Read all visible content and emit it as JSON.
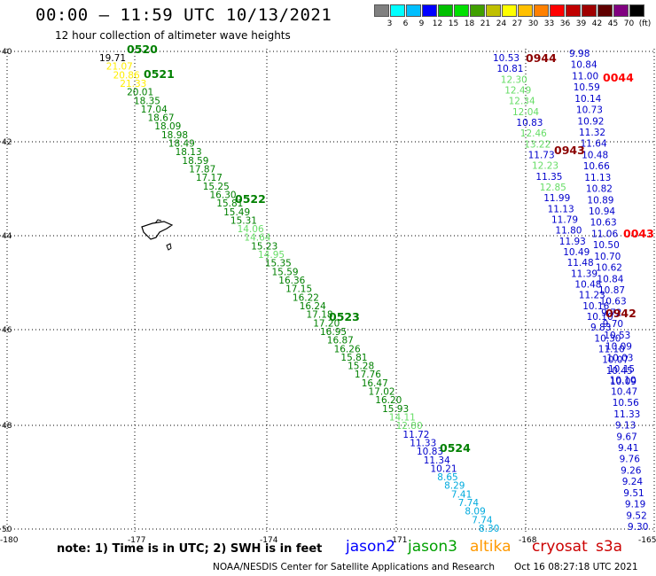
{
  "header": {
    "title": "00:00 – 11:59 UTC 10/13/2021",
    "subtitle": "12 hour collection of altimeter wave heights"
  },
  "scale": {
    "colors": [
      "#808080",
      "#00ffff",
      "#00bfff",
      "#0000ff",
      "#00c000",
      "#00e000",
      "#40a000",
      "#c0c000",
      "#ffff00",
      "#ffc000",
      "#ff8000",
      "#ff0000",
      "#c00000",
      "#a00000",
      "#600000",
      "#800080",
      "#000000"
    ],
    "labels": [
      "3",
      "6",
      "9",
      "12",
      "15",
      "18",
      "21",
      "24",
      "27",
      "30",
      "33",
      "36",
      "39",
      "42",
      "45",
      "70",
      "(ft)"
    ]
  },
  "footer": {
    "note": "note:  1) Time is in UTC;  2) SWH is in feet",
    "satellites": [
      {
        "name": "jason2",
        "color": "#0000ff"
      },
      {
        "name": "jason3",
        "color": "#00a000"
      },
      {
        "name": "altika",
        "color": "#ff9900"
      },
      {
        "name": "cryosat",
        "color": "#cc0000"
      },
      {
        "name": "s3a",
        "color": "#cc0000"
      }
    ],
    "credit": "NOAA/NESDIS Center for Satellite Applications and Research",
    "generated": "Oct 16 08:27:18 UTC 2021"
  },
  "map": {
    "lat_labels": [
      "40",
      "42",
      "44",
      "46",
      "48",
      "50"
    ],
    "lon_labels": [
      "-180",
      "-177",
      "-174",
      "-171",
      "-168",
      "-165"
    ],
    "time_labels": [
      {
        "text": "0520",
        "color": "#008000"
      },
      {
        "text": "0521",
        "color": "#008000"
      },
      {
        "text": "0522",
        "color": "#008000"
      },
      {
        "text": "0523",
        "color": "#008000"
      },
      {
        "text": "0524",
        "color": "#008000"
      },
      {
        "text": "0944",
        "color": "#8b0000"
      },
      {
        "text": "0943",
        "color": "#8b0000"
      },
      {
        "text": "0942",
        "color": "#8b0000"
      },
      {
        "text": "0044",
        "color": "#ff0000"
      },
      {
        "text": "0043",
        "color": "#ff0000"
      }
    ],
    "track1": [
      [
        "19.71",
        "#000000"
      ],
      [
        "21.07",
        "#ffee00"
      ],
      [
        "20.86",
        "#ffee00"
      ],
      [
        "21.33",
        "#ffee00"
      ],
      [
        "20.01",
        "#008000"
      ],
      [
        "18.35",
        "#008000"
      ],
      [
        "17.04",
        "#008000"
      ],
      [
        "18.67",
        "#008000"
      ],
      [
        "18.09",
        "#008000"
      ],
      [
        "18.98",
        "#008000"
      ],
      [
        "18.49",
        "#008000"
      ],
      [
        "18.13",
        "#008000"
      ],
      [
        "18.59",
        "#008000"
      ],
      [
        "17.87",
        "#008000"
      ],
      [
        "17.17",
        "#008000"
      ],
      [
        "15.25",
        "#008000"
      ],
      [
        "16.30",
        "#008000"
      ],
      [
        "15.81",
        "#008000"
      ],
      [
        "15.49",
        "#008000"
      ],
      [
        "15.31",
        "#008000"
      ],
      [
        "14.06",
        "#66dd66"
      ],
      [
        "14.64",
        "#66dd66"
      ],
      [
        "15.23",
        "#008000"
      ],
      [
        "14.95",
        "#66dd66"
      ],
      [
        "15.35",
        "#008000"
      ],
      [
        "15.59",
        "#008000"
      ],
      [
        "16.36",
        "#008000"
      ],
      [
        "17.15",
        "#008000"
      ],
      [
        "16.22",
        "#008000"
      ],
      [
        "16.24",
        "#008000"
      ],
      [
        "17.18",
        "#008000"
      ],
      [
        "17.20",
        "#008000"
      ],
      [
        "16.95",
        "#008000"
      ],
      [
        "16.87",
        "#008000"
      ],
      [
        "16.26",
        "#008000"
      ],
      [
        "15.81",
        "#008000"
      ],
      [
        "15.28",
        "#008000"
      ],
      [
        "17.76",
        "#008000"
      ],
      [
        "16.47",
        "#008000"
      ],
      [
        "17.02",
        "#008000"
      ],
      [
        "16.20",
        "#008000"
      ],
      [
        "15.93",
        "#008000"
      ],
      [
        "14.11",
        "#66dd66"
      ],
      [
        "12.80",
        "#66dd66"
      ],
      [
        "11.72",
        "#0000cc"
      ],
      [
        "11.33",
        "#0000cc"
      ],
      [
        "10.83",
        "#0000cc"
      ],
      [
        "11.34",
        "#0000cc"
      ],
      [
        "10.21",
        "#0000cc"
      ],
      [
        "8.65",
        "#00aadd"
      ],
      [
        "8.29",
        "#00aadd"
      ],
      [
        "7.41",
        "#00aadd"
      ],
      [
        "7.74",
        "#00aadd"
      ],
      [
        "8.09",
        "#00aadd"
      ],
      [
        "7.74",
        "#00aadd"
      ],
      [
        "8.30",
        "#00aadd"
      ]
    ],
    "track2": [
      [
        "10.53",
        "#0000cc"
      ],
      [
        "10.81",
        "#0000cc"
      ],
      [
        "12.30",
        "#66dd66"
      ],
      [
        "12.49",
        "#66dd66"
      ],
      [
        "12.34",
        "#66dd66"
      ],
      [
        "12.04",
        "#66dd66"
      ],
      [
        "10.83",
        "#0000cc"
      ],
      [
        "12.46",
        "#66dd66"
      ],
      [
        "13.22",
        "#66dd66"
      ],
      [
        "11.73",
        "#0000cc"
      ],
      [
        "12.23",
        "#66dd66"
      ],
      [
        "11.35",
        "#0000cc"
      ],
      [
        "12.85",
        "#66dd66"
      ],
      [
        "11.99",
        "#0000cc"
      ],
      [
        "11.13",
        "#0000cc"
      ],
      [
        "11.79",
        "#0000cc"
      ],
      [
        "11.80",
        "#0000cc"
      ],
      [
        "11.93",
        "#0000cc"
      ],
      [
        "10.49",
        "#0000cc"
      ],
      [
        "11.48",
        "#0000cc"
      ],
      [
        "11.39",
        "#0000cc"
      ],
      [
        "10.48",
        "#0000cc"
      ],
      [
        "11.23",
        "#0000cc"
      ],
      [
        "10.16",
        "#0000cc"
      ],
      [
        "10.10",
        "#0000cc"
      ],
      [
        "9.83",
        "#0000cc"
      ],
      [
        "10.30",
        "#0000cc"
      ],
      [
        "11.10",
        "#0000cc"
      ],
      [
        "10.07",
        "#0000cc"
      ],
      [
        "10.45",
        "#0000cc"
      ],
      [
        "10.09",
        "#0000cc"
      ]
    ],
    "track3": [
      [
        "9.98",
        "#0000cc"
      ],
      [
        "10.84",
        "#0000cc"
      ],
      [
        "11.00",
        "#0000cc"
      ],
      [
        "10.59",
        "#0000cc"
      ],
      [
        "10.14",
        "#0000cc"
      ],
      [
        "10.73",
        "#0000cc"
      ],
      [
        "10.92",
        "#0000cc"
      ],
      [
        "11.32",
        "#0000cc"
      ],
      [
        "11.64",
        "#0000cc"
      ],
      [
        "10.48",
        "#0000cc"
      ],
      [
        "10.66",
        "#0000cc"
      ],
      [
        "11.13",
        "#0000cc"
      ],
      [
        "10.82",
        "#0000cc"
      ],
      [
        "10.89",
        "#0000cc"
      ],
      [
        "10.94",
        "#0000cc"
      ],
      [
        "10.63",
        "#0000cc"
      ],
      [
        "11.06",
        "#0000cc"
      ],
      [
        "10.50",
        "#0000cc"
      ],
      [
        "10.70",
        "#0000cc"
      ],
      [
        "10.62",
        "#0000cc"
      ],
      [
        "10.84",
        "#0000cc"
      ],
      [
        "10.87",
        "#0000cc"
      ],
      [
        "10.63",
        "#0000cc"
      ],
      [
        "9.72",
        "#0000cc"
      ],
      [
        "9.70",
        "#0000cc"
      ],
      [
        "10.53",
        "#0000cc"
      ],
      [
        "10.09",
        "#0000cc"
      ],
      [
        "10.03",
        "#0000cc"
      ],
      [
        "10.15",
        "#0000cc"
      ],
      [
        "10.10",
        "#0000cc"
      ],
      [
        "10.47",
        "#0000cc"
      ],
      [
        "10.56",
        "#0000cc"
      ],
      [
        "11.33",
        "#0000cc"
      ],
      [
        "9.13",
        "#0000cc"
      ],
      [
        "9.67",
        "#0000cc"
      ],
      [
        "9.41",
        "#0000cc"
      ],
      [
        "9.76",
        "#0000cc"
      ],
      [
        "9.26",
        "#0000cc"
      ],
      [
        "9.24",
        "#0000cc"
      ],
      [
        "9.51",
        "#0000cc"
      ],
      [
        "9.19",
        "#0000cc"
      ],
      [
        "9.52",
        "#0000cc"
      ],
      [
        "9.30",
        "#0000cc"
      ]
    ]
  }
}
